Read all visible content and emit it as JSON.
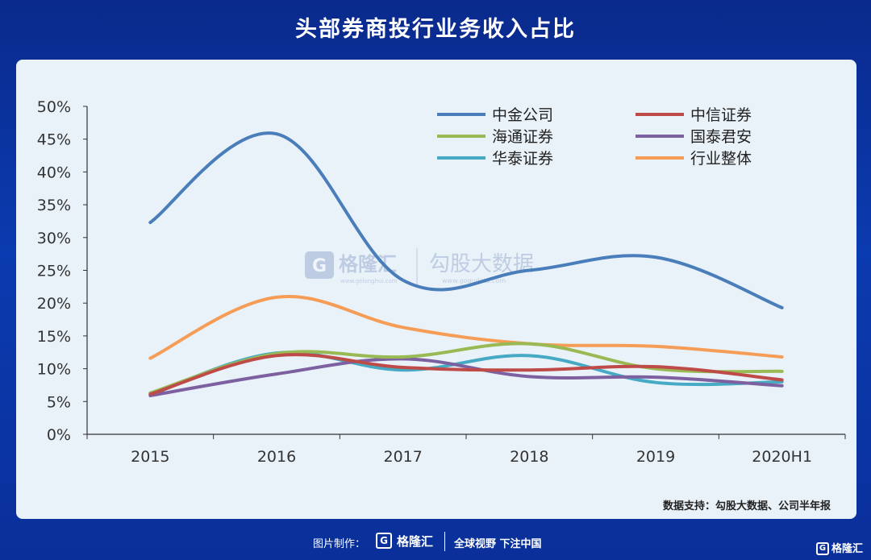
{
  "title": "头部券商投行业务收入占比",
  "source": "数据支持：勾股大数据、公司半年报",
  "watermark": {
    "brand": "格隆汇",
    "brand_sub": "www.gelonghui.com",
    "data": "勾股大数据",
    "data_sub": "www.gogudata.com"
  },
  "footer": {
    "credit": "图片制作：",
    "logo_letter": "G",
    "brand": "格隆汇",
    "slogan": "全球视野 下注中国"
  },
  "corner_logo": {
    "letter": "G",
    "text": "格隆汇"
  },
  "chart_data": {
    "type": "line",
    "title": "头部券商投行业务收入占比",
    "categories": [
      "2015",
      "2016",
      "2017",
      "2018",
      "2019",
      "2020H1"
    ],
    "ylim": [
      0,
      50
    ],
    "yticks": [
      "0%",
      "5%",
      "10%",
      "15%",
      "20%",
      "25%",
      "30%",
      "35%",
      "40%",
      "45%",
      "50%"
    ],
    "legend_position": "top-right",
    "smooth": true,
    "grid": false,
    "series": [
      {
        "name": "中金公司",
        "color": "#4a7ebb",
        "values": [
          32.3,
          45.8,
          23.5,
          25.0,
          27.0,
          19.3
        ]
      },
      {
        "name": "中信证券",
        "color": "#be4b48",
        "values": [
          6.1,
          12.0,
          10.2,
          9.8,
          10.3,
          8.3
        ]
      },
      {
        "name": "海通证券",
        "color": "#98b954",
        "values": [
          6.3,
          12.3,
          11.8,
          13.8,
          10.0,
          9.6
        ]
      },
      {
        "name": "国泰君安",
        "color": "#7d60a0",
        "values": [
          5.9,
          9.2,
          11.5,
          8.8,
          8.7,
          7.4
        ]
      },
      {
        "name": "华泰证券",
        "color": "#46aac5",
        "values": [
          6.0,
          12.4,
          9.8,
          12.0,
          7.9,
          8.0
        ]
      },
      {
        "name": "行业整体",
        "color": "#f59d56",
        "values": [
          11.6,
          20.9,
          16.3,
          13.8,
          13.4,
          11.8
        ]
      }
    ]
  }
}
